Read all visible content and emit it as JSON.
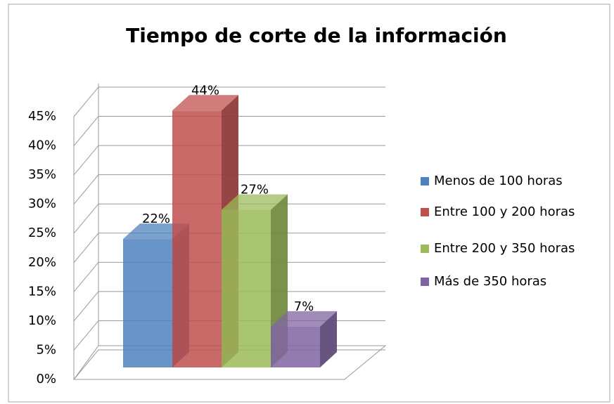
{
  "chart_data": {
    "type": "bar3d",
    "title": "Tiempo de corte de la información",
    "series": [
      {
        "name": "Menos de 100 horas",
        "color": "#4f81bd",
        "values": [
          22
        ],
        "value_labels": [
          "22%"
        ]
      },
      {
        "name": "Entre 100 y 200 horas",
        "color": "#c0504d",
        "values": [
          44
        ],
        "value_labels": [
          "44%"
        ]
      },
      {
        "name": "Entre 200 y 350 horas",
        "color": "#9bbb59",
        "values": [
          27
        ],
        "value_labels": [
          "27%"
        ]
      },
      {
        "name": "Más de 350 horas",
        "color": "#8064a2",
        "values": [
          7
        ],
        "value_labels": [
          "7%"
        ]
      }
    ],
    "ylim": [
      0,
      45
    ],
    "yticks": [
      {
        "value": 0,
        "label": "0%"
      },
      {
        "value": 5,
        "label": "5%"
      },
      {
        "value": 10,
        "label": "10%"
      },
      {
        "value": 15,
        "label": "15%"
      },
      {
        "value": 20,
        "label": "20%"
      },
      {
        "value": 25,
        "label": "25%"
      },
      {
        "value": 30,
        "label": "30%"
      },
      {
        "value": 35,
        "label": "35%"
      },
      {
        "value": 40,
        "label": "40%"
      },
      {
        "value": 45,
        "label": "45%"
      }
    ],
    "grid": true,
    "legend": "right"
  }
}
